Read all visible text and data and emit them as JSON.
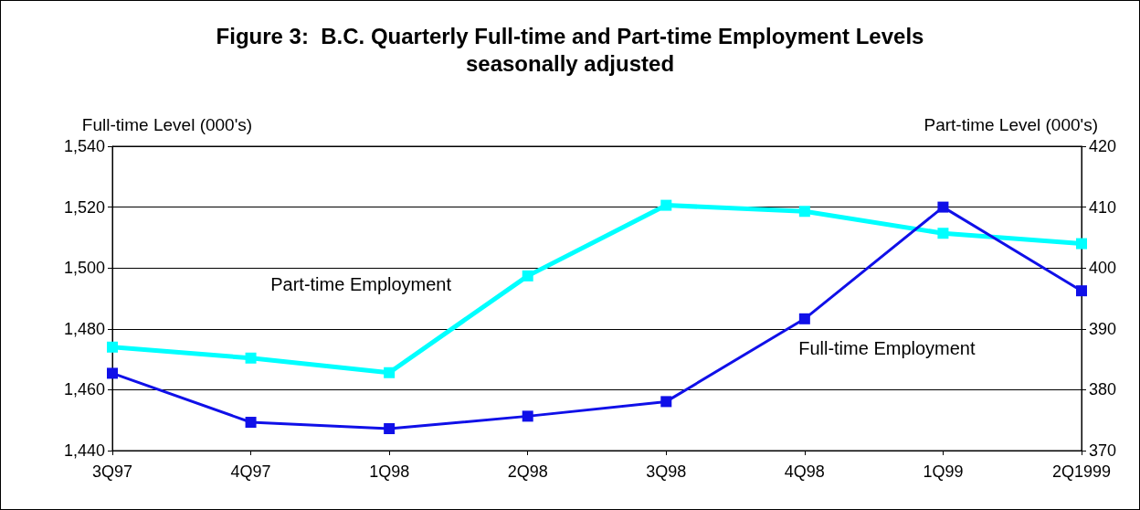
{
  "chart_data": {
    "type": "line",
    "title": "Figure 3:  B.C. Quarterly Full-time and Part-time Employment Levels\nseasonally adjusted",
    "ylabel": "Full-time Level (000's)",
    "y2label": "Part-time Level (000's)",
    "categories": [
      "3Q97",
      "4Q97",
      "1Q98",
      "2Q98",
      "3Q98",
      "4Q98",
      "1Q99",
      "2Q1999"
    ],
    "series": [
      {
        "name": "Full-time Employment",
        "color": "#1010e8",
        "values": [
          1465.4,
          1449.3,
          1447.2,
          1451.3,
          1456.1,
          1483.3,
          1520,
          1492.5
        ]
      },
      {
        "name": "Part-time Employment",
        "color": "#00ffff",
        "axis": "y2",
        "values": [
          387.0,
          385.2,
          382.8,
          398.7,
          410.3,
          409.3,
          405.7,
          404.0
        ]
      }
    ],
    "ylim": [
      1440,
      1540
    ],
    "yticks": [
      {
        "value": 1440,
        "label": "1,440"
      },
      {
        "value": 1460,
        "label": "1,460"
      },
      {
        "value": 1480,
        "label": "1,480"
      },
      {
        "value": 1500,
        "label": "1,500"
      },
      {
        "value": 1520,
        "label": "1,520"
      },
      {
        "value": 1540,
        "label": "1,540"
      }
    ],
    "y2lim": [
      370,
      420
    ],
    "y2ticks": [
      370,
      380,
      390,
      400,
      410,
      420
    ],
    "grid": "y",
    "marker": "square",
    "line_style": "solid"
  }
}
